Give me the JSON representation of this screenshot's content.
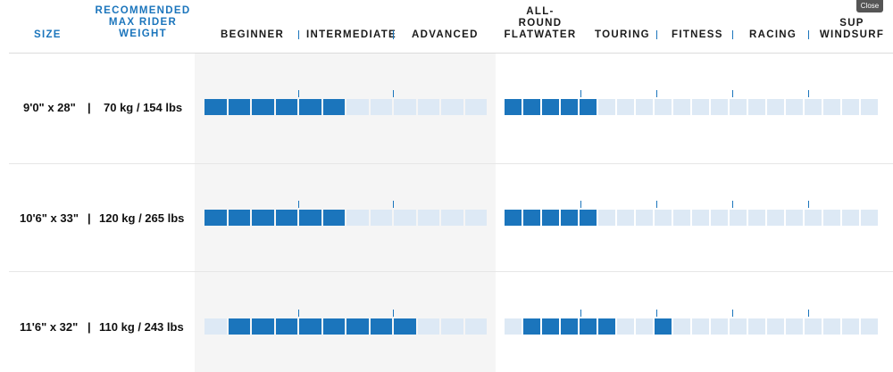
{
  "close_label": "Close",
  "headers": {
    "size": "SIZE",
    "weight": [
      "RECOMMENDED",
      "MAX RIDER",
      "WEIGHT"
    ],
    "beginner": "BEGINNER",
    "intermediate": "INTERMEDIATE",
    "advanced": "ADVANCED",
    "allround": [
      "ALL-",
      "ROUND",
      "FLATWATER"
    ],
    "touring": "TOURING",
    "fitness": "FITNESS",
    "racing": "RACING",
    "sup_windsurf": [
      "SUP",
      "WINDSURF"
    ]
  },
  "separator": "|",
  "rows": [
    {
      "size": "9'0\" x 28\"",
      "weight": "70 kg / 154 lbs",
      "skill_segments": [
        1,
        1,
        1,
        1,
        1,
        1,
        0,
        0,
        0,
        0,
        0,
        0
      ],
      "use_segments": [
        1,
        1,
        1,
        1,
        1,
        0,
        0,
        0,
        0,
        0,
        0,
        0,
        0,
        0,
        0,
        0,
        0,
        0,
        0,
        0
      ]
    },
    {
      "size": "10'6\" x 33\"",
      "weight": "120 kg / 265 lbs",
      "skill_segments": [
        1,
        1,
        1,
        1,
        1,
        1,
        0,
        0,
        0,
        0,
        0,
        0
      ],
      "use_segments": [
        1,
        1,
        1,
        1,
        1,
        0,
        0,
        0,
        0,
        0,
        0,
        0,
        0,
        0,
        0,
        0,
        0,
        0,
        0,
        0
      ]
    },
    {
      "size": "11'6\" x 32\"",
      "weight": "110 kg / 243 lbs",
      "skill_segments": [
        0,
        1,
        1,
        1,
        1,
        1,
        1,
        1,
        1,
        0,
        0,
        0
      ],
      "use_segments": [
        0,
        1,
        1,
        1,
        1,
        1,
        0,
        0,
        1,
        0,
        0,
        0,
        0,
        0,
        0,
        0,
        0,
        0,
        0,
        0
      ]
    }
  ]
}
